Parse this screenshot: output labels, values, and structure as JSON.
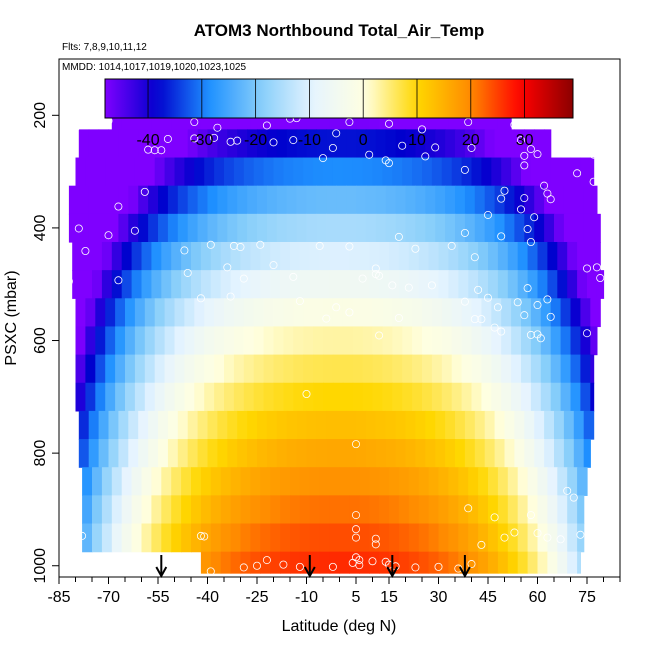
{
  "chart_data": {
    "type": "heatmap",
    "title": "ATOM3 Northbound Total_Air_Temp",
    "notes": {
      "flights": "Flts: 7,8,9,10,11,12",
      "dates": "MMDD: 1014,1017,1019,1020,1023,1025"
    },
    "xlabel": "Latitude (deg N)",
    "ylabel": "PSXC (mbar)",
    "x_ticks": [
      -85,
      -70,
      -55,
      -40,
      -25,
      -10,
      5,
      15,
      30,
      45,
      60,
      75
    ],
    "y_ticks": [
      200,
      400,
      600,
      800,
      1000
    ],
    "xlim": [
      -85,
      85
    ],
    "ylim": [
      1020,
      100
    ],
    "colorbar": {
      "ticks": [
        -40,
        -30,
        -20,
        -10,
        0,
        10,
        20,
        30
      ],
      "range": [
        -48,
        39
      ],
      "colors": [
        "#7f00ff",
        "#0000cd",
        "#1e90ff",
        "#87cefa",
        "#e6f4ff",
        "#ffffe0",
        "#ffd700",
        "#ff8c00",
        "#ff0000",
        "#8b0000"
      ]
    },
    "bands": [
      {
        "p": 200,
        "lat_min": -69,
        "lat_max": 52
      },
      {
        "p": 250,
        "lat_min": -79,
        "lat_max": 64
      },
      {
        "p": 300,
        "lat_min": -80,
        "lat_max": 77
      },
      {
        "p": 350,
        "lat_min": -82,
        "lat_max": 78
      },
      {
        "p": 400,
        "lat_min": -82,
        "lat_max": 79
      },
      {
        "p": 450,
        "lat_min": -81,
        "lat_max": 79
      },
      {
        "p": 500,
        "lat_min": -81,
        "lat_max": 80
      },
      {
        "p": 550,
        "lat_min": -80,
        "lat_max": 79
      },
      {
        "p": 600,
        "lat_min": -80,
        "lat_max": 78
      },
      {
        "p": 650,
        "lat_min": -80,
        "lat_max": 77
      },
      {
        "p": 700,
        "lat_min": -80,
        "lat_max": 77
      },
      {
        "p": 750,
        "lat_min": -79,
        "lat_max": 77
      },
      {
        "p": 800,
        "lat_min": -79,
        "lat_max": 76
      },
      {
        "p": 850,
        "lat_min": -78,
        "lat_max": 75
      },
      {
        "p": 900,
        "lat_min": -78,
        "lat_max": 74
      },
      {
        "p": 950,
        "lat_min": -78,
        "lat_max": 74
      },
      {
        "p": 1000,
        "lat_min": -42,
        "lat_max": 73
      }
    ],
    "arrows_lat": [
      -54,
      -9,
      16,
      38
    ],
    "observations": [
      [
        -55,
        183
      ],
      [
        -70,
        210
      ],
      [
        -72,
        208
      ],
      [
        -44,
        212
      ],
      [
        -37,
        222
      ],
      [
        -22,
        218
      ],
      [
        -13,
        205
      ],
      [
        -9,
        197
      ],
      [
        -8,
        190
      ],
      [
        -1,
        232
      ],
      [
        -15,
        206
      ],
      [
        3,
        212
      ],
      [
        15,
        215
      ],
      [
        25,
        225
      ],
      [
        39,
        212
      ],
      [
        53,
        217
      ],
      [
        -80,
        222
      ],
      [
        -52,
        242
      ],
      [
        -44,
        241
      ],
      [
        -38,
        240
      ],
      [
        -33,
        247
      ],
      [
        -31,
        245
      ],
      [
        -58,
        261
      ],
      [
        -56,
        262
      ],
      [
        -54,
        262
      ],
      [
        -20,
        248
      ],
      [
        -14,
        244
      ],
      [
        -2,
        258
      ],
      [
        19,
        254
      ],
      [
        29,
        257
      ],
      [
        40,
        258
      ],
      [
        55,
        244
      ],
      [
        58,
        260
      ],
      [
        -5,
        276
      ],
      [
        9,
        270
      ],
      [
        14,
        280
      ],
      [
        15,
        285
      ],
      [
        26,
        273
      ],
      [
        38,
        297
      ],
      [
        56,
        272
      ],
      [
        56,
        289
      ],
      [
        60,
        269
      ],
      [
        77,
        270
      ],
      [
        -84,
        330
      ],
      [
        -59,
        336
      ],
      [
        -67,
        362
      ],
      [
        56,
        347
      ],
      [
        50,
        334
      ],
      [
        49,
        348
      ],
      [
        55,
        367
      ],
      [
        45,
        377
      ],
      [
        59,
        381
      ],
      [
        62,
        325
      ],
      [
        63,
        339
      ],
      [
        64,
        349
      ],
      [
        72,
        303
      ],
      [
        77,
        318
      ],
      [
        -79,
        401
      ],
      [
        -77,
        441
      ],
      [
        -70,
        413
      ],
      [
        -62,
        405
      ],
      [
        -47,
        440
      ],
      [
        -39,
        430
      ],
      [
        -32,
        432
      ],
      [
        -30,
        434
      ],
      [
        -24,
        430
      ],
      [
        -6,
        432
      ],
      [
        3,
        433
      ],
      [
        18,
        416
      ],
      [
        23,
        437
      ],
      [
        34,
        432
      ],
      [
        38,
        409
      ],
      [
        41,
        452
      ],
      [
        49,
        415
      ],
      [
        57,
        402
      ],
      [
        58,
        425
      ],
      [
        -82,
        495
      ],
      [
        -67,
        493
      ],
      [
        -46,
        480
      ],
      [
        -34,
        470
      ],
      [
        -20,
        466
      ],
      [
        -14,
        487
      ],
      [
        -12,
        530
      ],
      [
        -29,
        490
      ],
      [
        7,
        490
      ],
      [
        11,
        482
      ],
      [
        11,
        472
      ],
      [
        12,
        485
      ],
      [
        16,
        502
      ],
      [
        21,
        506
      ],
      [
        28,
        502
      ],
      [
        42,
        510
      ],
      [
        45,
        524
      ],
      [
        57,
        507
      ],
      [
        60,
        537
      ],
      [
        63,
        527
      ],
      [
        75,
        472
      ],
      [
        78,
        470
      ],
      [
        79,
        489
      ],
      [
        -42,
        525
      ],
      [
        -33,
        522
      ],
      [
        -4,
        561
      ],
      [
        -1,
        541
      ],
      [
        3,
        550
      ],
      [
        12,
        591
      ],
      [
        18,
        560
      ],
      [
        38,
        531
      ],
      [
        41,
        562
      ],
      [
        43,
        562
      ],
      [
        47,
        577
      ],
      [
        49,
        584
      ],
      [
        48,
        541
      ],
      [
        54,
        532
      ],
      [
        56,
        555
      ],
      [
        58,
        590
      ],
      [
        60,
        589
      ],
      [
        61,
        596
      ],
      [
        64,
        558
      ],
      [
        75,
        587
      ],
      [
        -10,
        695
      ],
      [
        5,
        784
      ],
      [
        71,
        879
      ],
      [
        69,
        867
      ],
      [
        39,
        898
      ],
      [
        47,
        914
      ],
      [
        58,
        910
      ],
      [
        5,
        910
      ],
      [
        5,
        935
      ],
      [
        -78,
        947
      ],
      [
        -42,
        947
      ],
      [
        -41,
        948
      ],
      [
        5,
        950
      ],
      [
        11,
        952
      ],
      [
        11,
        962
      ],
      [
        43,
        963
      ],
      [
        50,
        950
      ],
      [
        53,
        941
      ],
      [
        60,
        942
      ],
      [
        63,
        950
      ],
      [
        67,
        953
      ],
      [
        73,
        945
      ],
      [
        78,
        945
      ],
      [
        79,
        970
      ],
      [
        -39,
        1010
      ],
      [
        -29,
        1003
      ],
      [
        -22,
        990
      ],
      [
        -25,
        1000
      ],
      [
        -17,
        998
      ],
      [
        -12,
        1002
      ],
      [
        -2,
        1002
      ],
      [
        4,
        995
      ],
      [
        6,
        999
      ],
      [
        5,
        985
      ],
      [
        6,
        990
      ],
      [
        10,
        992
      ],
      [
        14,
        993
      ],
      [
        15,
        998
      ],
      [
        17,
        1001
      ],
      [
        23,
        1003
      ],
      [
        30,
        1002
      ],
      [
        36,
        1005
      ],
      [
        40,
        997
      ]
    ]
  }
}
